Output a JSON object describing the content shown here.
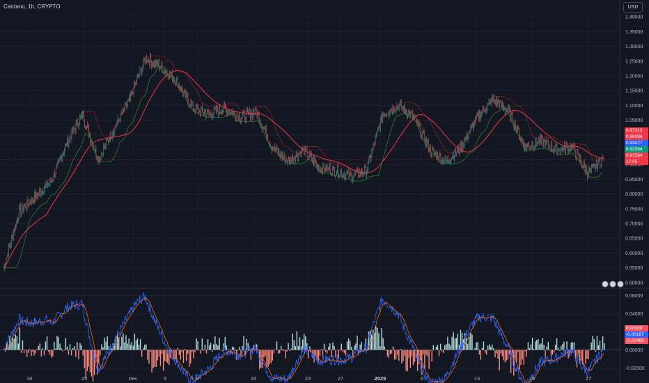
{
  "header": {
    "title": "Cardano, 1h, CRYPTO",
    "currency": "USD"
  },
  "price_axis": [
    "1.40000",
    "1.35000",
    "1.30000",
    "1.25000",
    "1.20000",
    "1.15000",
    "1.10000",
    "1.05000",
    "1.00000",
    "0.95000",
    "0.90000",
    "0.85000",
    "0.80000",
    "0.75000",
    "0.70000",
    "0.65000",
    "0.60000",
    "0.55000",
    "0.50000"
  ],
  "osc_axis": [
    "0.06000",
    "0.04000",
    "0.02000",
    "0.00000",
    "-0.02000"
  ],
  "price_tags": [
    {
      "text": "0.97313",
      "color": "#f23645"
    },
    {
      "text": "0.96086",
      "color": "#f23645"
    },
    {
      "text": "0.93477",
      "color": "#2962ff"
    },
    {
      "text": "0.92394",
      "color": "#089981"
    },
    {
      "text": "0.91584",
      "color": "#f23645"
    },
    {
      "text": "17:05",
      "color": "#f23645"
    }
  ],
  "osc_tags": [
    {
      "text": "0.00308",
      "color": "#f7525f"
    },
    {
      "text": "-0.00187",
      "color": "#2962ff"
    },
    {
      "text": "-0.00495",
      "color": "#f7525f"
    }
  ],
  "time_axis": [
    "18",
    "25",
    "Dec",
    "5",
    "9",
    "16",
    "23",
    "27",
    "2025",
    "6",
    "13",
    "20",
    "27"
  ],
  "chart_data": {
    "type": "line",
    "price": {
      "x": [
        "Nov 13",
        "Nov 16",
        "Nov 18",
        "Nov 21",
        "Nov 23",
        "Nov 25",
        "Nov 28",
        "Dec 1",
        "Dec 3",
        "Dec 5",
        "Dec 7",
        "Dec 9",
        "Dec 10",
        "Dec 12",
        "Dec 14",
        "Dec 16",
        "Dec 18",
        "Dec 20",
        "Dec 21",
        "Dec 23",
        "Dec 25",
        "Dec 27",
        "Dec 30",
        "Jan 1",
        "Jan 3",
        "Jan 6",
        "Jan 7",
        "Jan 9",
        "Jan 11",
        "Jan 13",
        "Jan 15",
        "Jan 17",
        "Jan 18",
        "Jan 20",
        "Jan 22",
        "Jan 24",
        "Jan 26",
        "Jan 27",
        "Jan 29"
      ],
      "close": [
        0.55,
        0.74,
        0.79,
        0.84,
        0.97,
        1.07,
        0.92,
        1.02,
        1.12,
        1.26,
        1.23,
        1.18,
        1.09,
        1.07,
        1.09,
        1.06,
        1.08,
        0.96,
        0.91,
        0.95,
        0.89,
        0.88,
        0.86,
        0.88,
        1.07,
        1.1,
        1.06,
        0.95,
        0.91,
        0.96,
        1.06,
        1.12,
        1.08,
        0.96,
        0.98,
        0.95,
        0.96,
        0.87,
        0.92
      ],
      "ylim": [
        0.49,
        1.41
      ]
    },
    "oscillator": {
      "ylim": [
        -0.025,
        0.065
      ]
    }
  }
}
